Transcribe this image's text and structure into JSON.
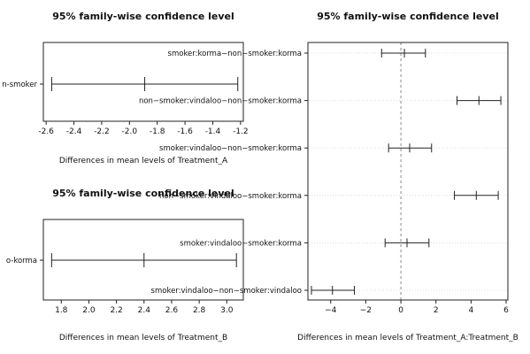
{
  "chart_data": [
    {
      "type": "interval",
      "title": "95% family-wise confidence level",
      "xlabel": "Differences in mean levels of Treatment_A",
      "xlim": [
        -2.62,
        -1.18
      ],
      "xticks": [
        -2.6,
        -2.4,
        -2.2,
        -2.0,
        -1.8,
        -1.6,
        -1.4,
        -1.2
      ],
      "xtick_labels": [
        "-2.6",
        "-2.4",
        "-2.2",
        "-2.0",
        "-1.8",
        "-1.6",
        "-1.4",
        "-1.2"
      ],
      "comparisons": [
        {
          "label": "non-smoker-smoker",
          "displayed_label": "n-smoker",
          "lwr": -2.56,
          "diff": -1.89,
          "upr": -1.22
        }
      ]
    },
    {
      "type": "interval",
      "title": "95% family-wise confidence level",
      "xlabel": "Differences in mean levels of Treatment_B",
      "xlim": [
        1.67,
        3.12
      ],
      "xticks": [
        1.8,
        2.0,
        2.2,
        2.4,
        2.6,
        2.8,
        3.0
      ],
      "xtick_labels": [
        "1.8",
        "2.0",
        "2.2",
        "2.4",
        "2.6",
        "2.8",
        "3.0"
      ],
      "comparisons": [
        {
          "label": "vindaloo-korma",
          "displayed_label": "o-korma",
          "lwr": 1.73,
          "diff": 2.4,
          "upr": 3.07
        }
      ]
    },
    {
      "type": "interval",
      "title": "95% family-wise confidence level",
      "xlabel": "Differences in mean levels of Treatment_A:Treatment_B",
      "xlim": [
        -5.3,
        6.1
      ],
      "xticks": [
        -4,
        -2,
        0,
        2,
        4,
        6
      ],
      "xtick_labels": [
        "−4",
        "−2",
        "0",
        "2",
        "4",
        "6"
      ],
      "zero_line": 0,
      "comparisons": [
        {
          "label": "smoker:korma−non−smoker:korma",
          "lwr": -1.1,
          "diff": 0.2,
          "upr": 1.4
        },
        {
          "label": "non−smoker:vindaloo−non−smoker:korma",
          "lwr": 3.2,
          "diff": 4.45,
          "upr": 5.7
        },
        {
          "label": "smoker:vindaloo−non−smoker:korma",
          "lwr": -0.7,
          "diff": 0.5,
          "upr": 1.75
        },
        {
          "label": "non−smoker:vindaloo−smoker:korma",
          "lwr": 3.05,
          "diff": 4.3,
          "upr": 5.55
        },
        {
          "label": "smoker:vindaloo−smoker:korma",
          "lwr": -0.9,
          "diff": 0.35,
          "upr": 1.6
        },
        {
          "label": "smoker:vindaloo−non−smoker:vindaloo",
          "lwr": -5.1,
          "diff": -3.9,
          "upr": -2.65
        }
      ]
    }
  ]
}
